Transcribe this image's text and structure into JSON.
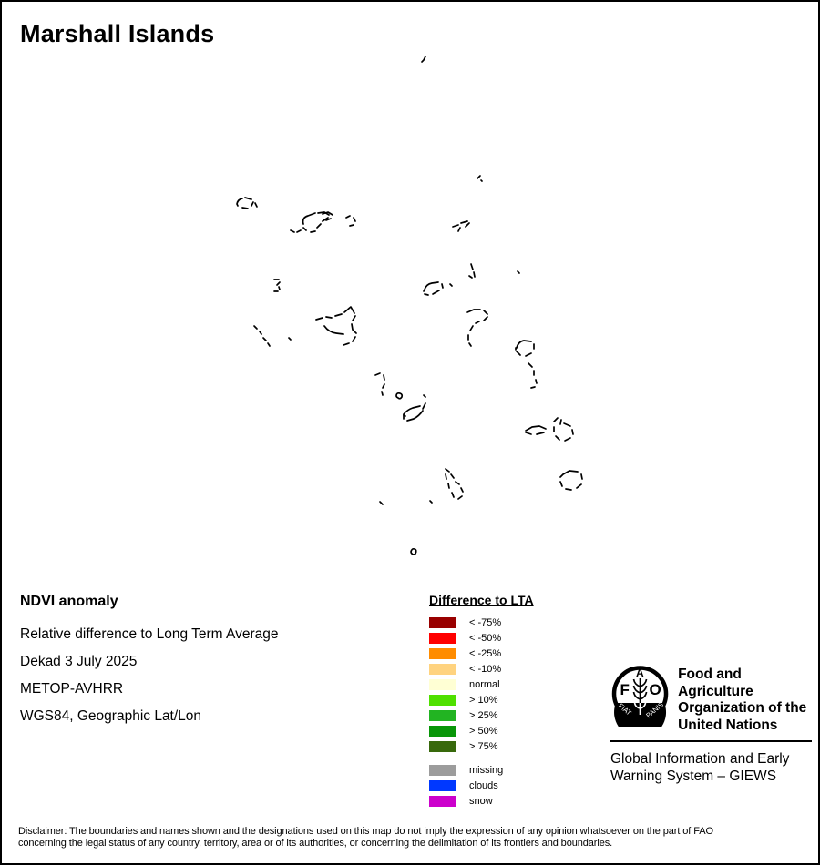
{
  "title": "Marshall Islands",
  "info": {
    "heading": "NDVI anomaly",
    "lines": [
      "Relative difference to Long Term Average",
      "Dekad 3 July 2025",
      "METOP-AVHRR",
      "WGS84, Geographic Lat/Lon"
    ]
  },
  "legend": {
    "title": "Difference to LTA",
    "items": [
      {
        "label": "< -75%",
        "color": "#990000"
      },
      {
        "label": "< -50%",
        "color": "#FF0000"
      },
      {
        "label": "< -25%",
        "color": "#FF8C00"
      },
      {
        "label": "< -10%",
        "color": "#FFD37F"
      },
      {
        "label": "normal",
        "color": "#FFFFD4"
      },
      {
        "label": "> 10%",
        "color": "#4FE000"
      },
      {
        "label": "> 25%",
        "color": "#22B422"
      },
      {
        "label": "> 50%",
        "color": "#089608"
      },
      {
        "label": "> 75%",
        "color": "#38690C"
      }
    ],
    "special_items": [
      {
        "label": "missing",
        "color": "#9C9C9C"
      },
      {
        "label": "clouds",
        "color": "#0038FF"
      },
      {
        "label": "snow",
        "color": "#CC00CC"
      }
    ]
  },
  "branding": {
    "logo": {
      "letter_f": "F",
      "letter_a": "A",
      "letter_o": "O",
      "motto_left": "FIAT",
      "motto_right": "PANIS"
    },
    "org_lines": [
      "Food and Agriculture",
      "Organization of the",
      "United Nations"
    ],
    "giews_lines": [
      "Global Information and Early",
      "Warning System – GIEWS"
    ]
  },
  "disclaimer_lines": [
    "Disclaimer: The boundaries and names shown and the designations used on this map do not imply the expression of any opinion whatsoever on the part of FAO",
    "concerning the legal status of any country, territory, area or of its authorities, or concerning the delimitation of its frontiers and boundaries."
  ],
  "map": {
    "stroke_color": "#000000",
    "islands": [
      "M461,66 l2,-2 l2,-4",
      "M522,194 l3,-3 m1,5 l1,1",
      "M258,222 q1,-5 6,-6 m3,-1 l7,2 m2,3 l-2,4 m-4,3 l-6,-1 m-5,-2 l-1,-2",
      "M278,221 l2,4",
      "M317,251 l4,2 m3,0 l4,-2",
      "M331,244 q-2,-7 5,-9 l8,-3 m3,0 l7,-1 l5,3 m-1,3 l-6,4 m-2,3 l-4,4 m-2,4 l-5,1 m-5,-2 l-3,-3",
      "M352,233 l6,-2 l5,3 m-2,4 l-5,2",
      "M378,237 l4,-2 m4,2 l2,4 m-2,4 l-4,1",
      "M495,247 l6,-2 m3,-2 l7,-2 m2,2 l-4,4 m-6,1 l-2,4",
      "M515,288 l2,6 m1,3 l1,5 m-3,1 l-3,-2",
      "M566,296 l2,2",
      "M492,310 l2,2",
      "M464,316 q2,-6 8,-7 l7,-1 m4,2 l1,4 m-4,3 l-7,4 m-5,1 l-4,-1 m-1,-3 l1,-2",
      "M299,305 l5,0 m1,3 l-3,3 m2,2 l1,3 m-2,2 l-4,0",
      "M511,341 l7,-3 l7,0 m4,1 l4,4 m0,3 l-4,4 m-5,1 l-4,2 m-3,3 l-3,5 m-2,5 l0,5 m1,4 l2,3",
      "M345,349 l7,-2 m4,-1 l6,1 m4,-2 l7,-2 m3,-2 l7,-6 l4,7 m1,3 l-3,5 m-1,4 l1,6 l4,4 m-1,4 l-3,5 m-4,2 l-6,2 m-21,-21 q5,7 13,8 l8,1",
      "M277,356 l3,3 m3,3 l2,3 m2,4 l3,3 m2,3 l2,3",
      "M315,369 l2,2",
      "M565,380 q2,-7 8,-8 l8,1 m3,3 l0,5 m-3,5 l-6,3 m-6,-1 l-4,-4 m-1,-2 l0,-2",
      "M578,397 l4,4 m2,4 l0,5 m2,5 l1,4 m-2,4 l-4,1",
      "M410,410 l5,-2 m4,2 l1,5 m0,5 l-2,4 m-1,4 l1,4",
      "M433,433 q0,-4 4,-3 q3,1 2,4 q-2,3 -4,1 q-2,-1 -2,-2",
      "M463,432 l2,2",
      "M462,447 l3,-6 m-3,8 q-4,6 -10,9 l-7,2 m-4,-2 l0,-5 q4,-5 10,-7 l8,-2",
      "M441,454 l2,1",
      "M575,471 l7,-4 l8,-1 l7,3 m-2,4 l-8,2 m-6,0 l-6,-2",
      "M606,461 l4,-4 m4,2 l-1,5 m4,-1 l7,3 m2,4 l1,5 m-3,4 l-6,3 m-6,-1 l-4,-4 m-2,-5 l0,-5",
      "M487,513 l4,3 m2,3 l3,4 m2,4 l4,3 m2,4 l2,4 m-1,5 l-4,3 m-5,-2 l-2,-5 m-3,-5 l-1,-5 m-2,-5 l-1,-5",
      "M616,519 l7,-4 l9,1 m4,3 l1,5 m-1,6 l-5,4 m-6,2 l-6,-1 m-4,-3 l-2,-5 m0,-5 l3,-3",
      "M415,549 l3,3",
      "M470,548 l2,2",
      "M449,604 q1,-4 4,-3 q3,1 1,5 q-2,2 -4,0 q-1,-1 -1,-2"
    ]
  }
}
